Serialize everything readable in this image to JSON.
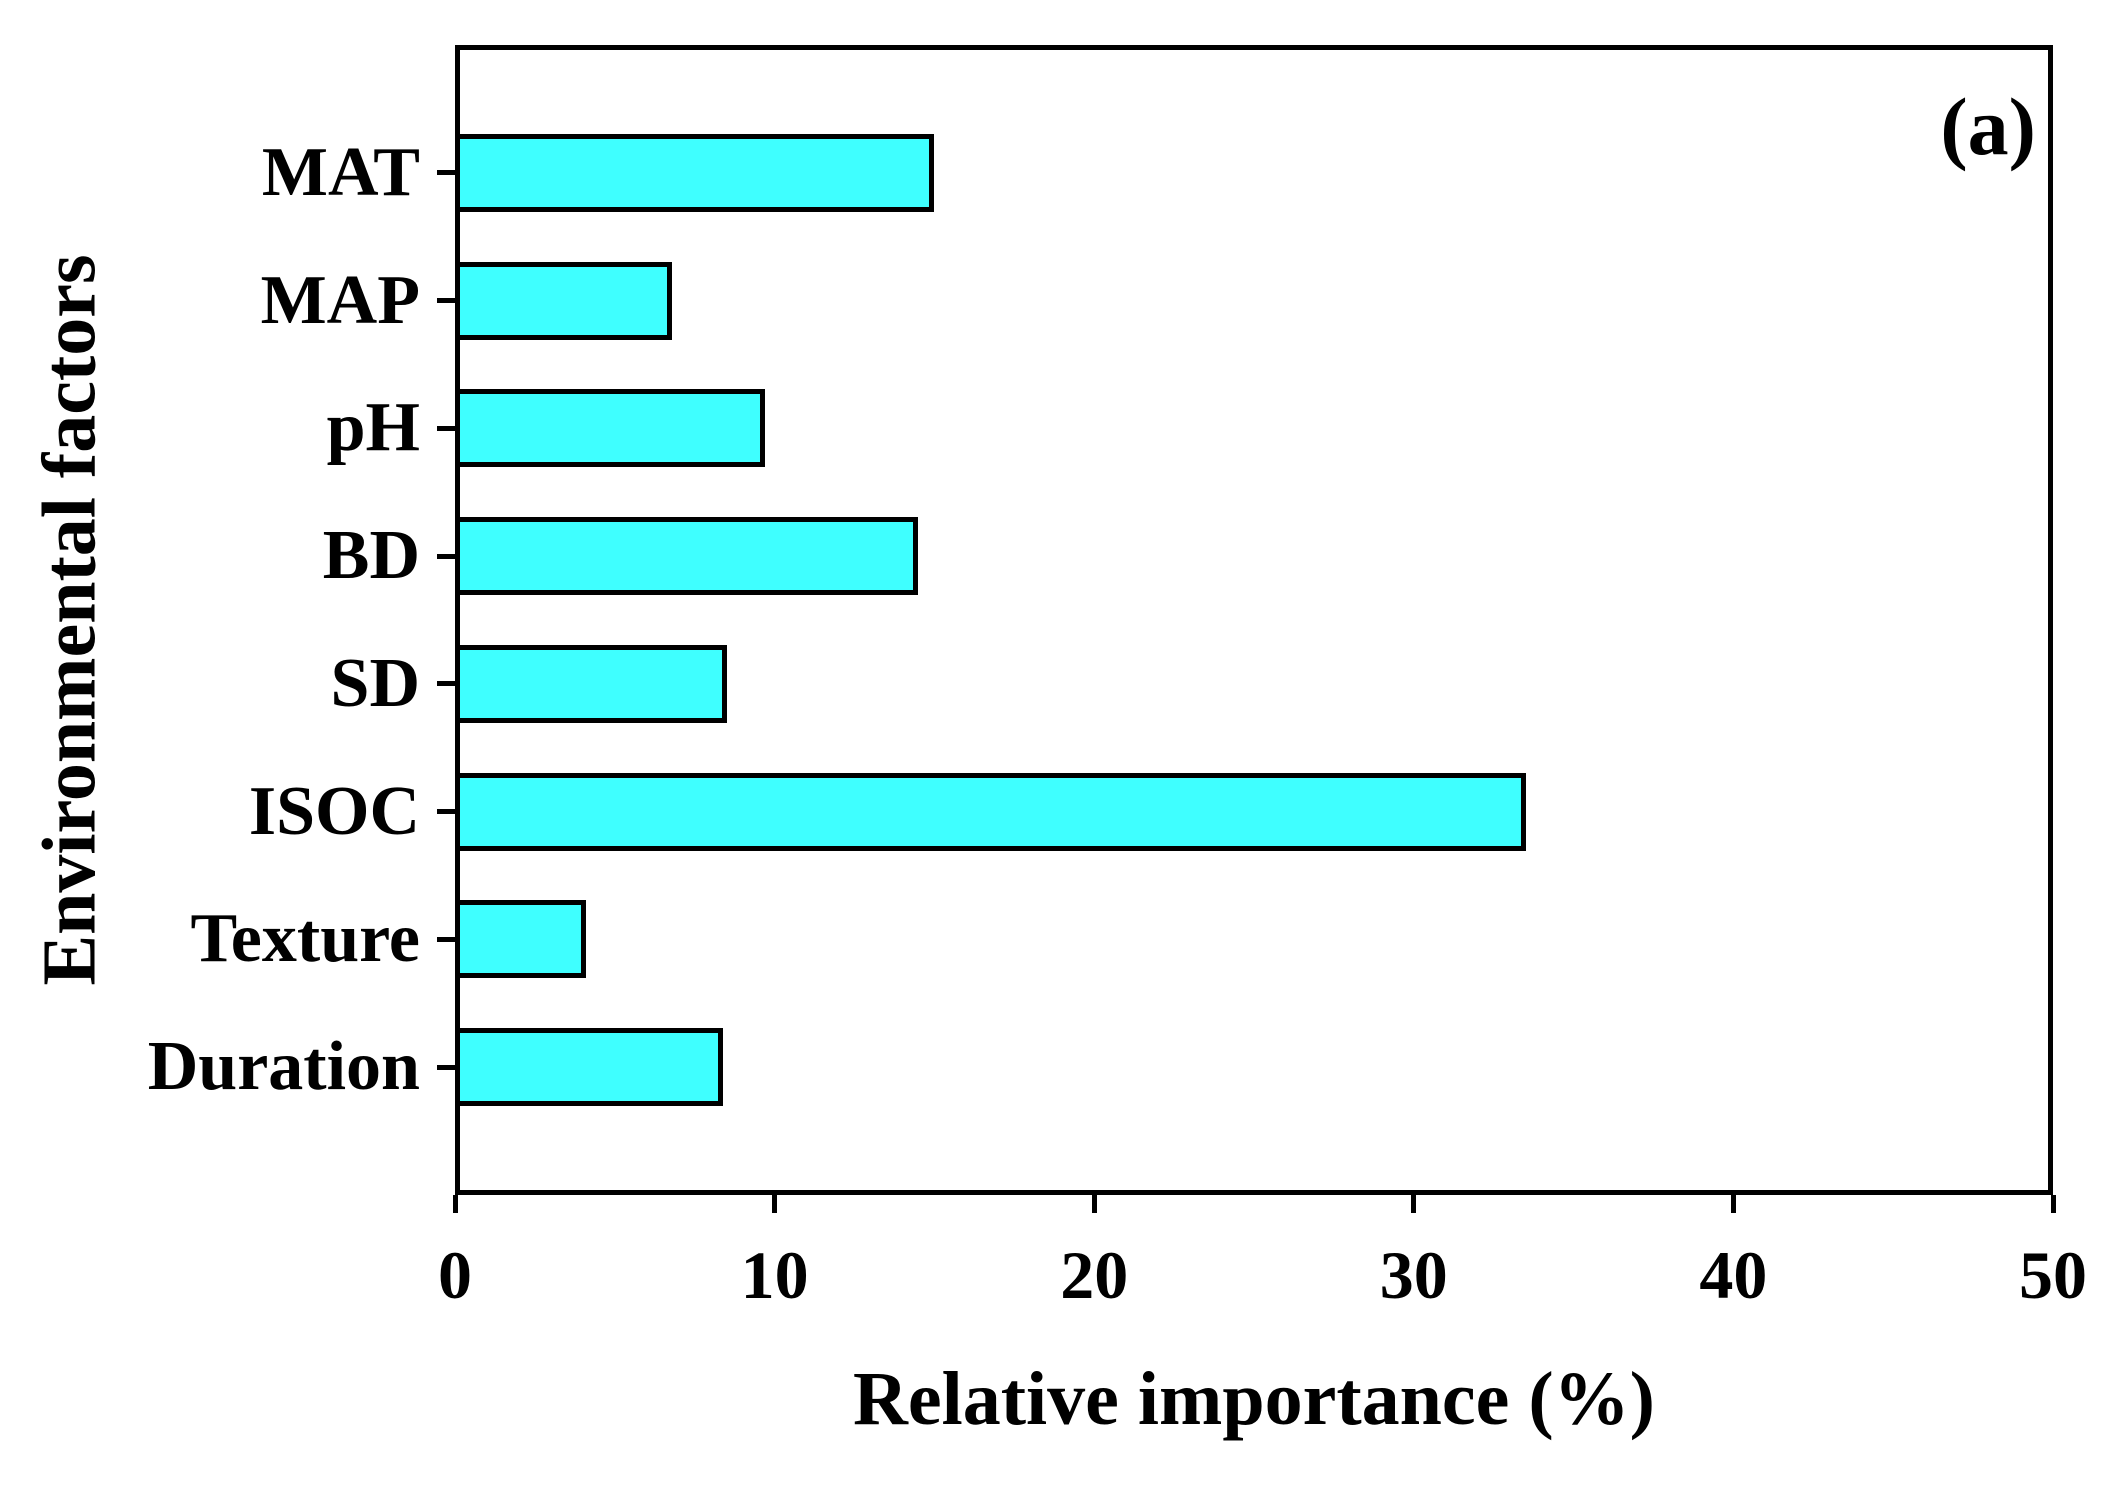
{
  "chart_data": {
    "type": "bar",
    "orientation": "horizontal",
    "panel_label": "(a)",
    "categories": [
      "MAT",
      "MAP",
      "pH",
      "BD",
      "SD",
      "ISOC",
      "Texture",
      "Duration"
    ],
    "values": [
      15.0,
      6.8,
      9.7,
      14.5,
      8.5,
      33.5,
      4.1,
      8.4
    ],
    "xlabel": "Relative importance (%)",
    "ylabel": "Environmental factors",
    "xlim": [
      0,
      50
    ],
    "xticks": [
      0,
      10,
      20,
      30,
      40,
      50
    ],
    "bar_color": "#3FFFFF",
    "bar_border_color": "#000000",
    "axis_color": "#000000",
    "grid": false,
    "legend": "none"
  }
}
